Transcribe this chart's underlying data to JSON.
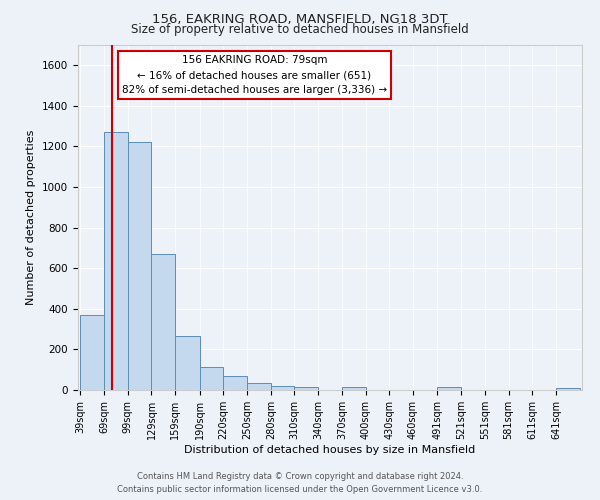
{
  "title_line1": "156, EAKRING ROAD, MANSFIELD, NG18 3DT",
  "title_line2": "Size of property relative to detached houses in Mansfield",
  "xlabel": "Distribution of detached houses by size in Mansfield",
  "ylabel": "Number of detached properties",
  "bar_labels": [
    "39sqm",
    "69sqm",
    "99sqm",
    "129sqm",
    "159sqm",
    "190sqm",
    "220sqm",
    "250sqm",
    "280sqm",
    "310sqm",
    "340sqm",
    "370sqm",
    "400sqm",
    "430sqm",
    "460sqm",
    "491sqm",
    "521sqm",
    "551sqm",
    "581sqm",
    "611sqm",
    "641sqm"
  ],
  "bar_values": [
    370,
    1270,
    1220,
    670,
    265,
    115,
    70,
    35,
    20,
    15,
    0,
    15,
    0,
    0,
    0,
    15,
    0,
    0,
    0,
    0,
    10
  ],
  "bar_color": "#c5d9ee",
  "bar_edge_color": "#5b8db8",
  "ylim": [
    0,
    1700
  ],
  "yticks": [
    0,
    200,
    400,
    600,
    800,
    1000,
    1200,
    1400,
    1600
  ],
  "bin_edges": [
    39,
    69,
    99,
    129,
    159,
    190,
    220,
    250,
    280,
    310,
    340,
    370,
    400,
    430,
    460,
    491,
    521,
    551,
    581,
    611,
    641,
    671
  ],
  "red_line_x": 79,
  "annotation_text_line1": "156 EAKRING ROAD: 79sqm",
  "annotation_text_line2": "← 16% of detached houses are smaller (651)",
  "annotation_text_line3": "82% of semi-detached houses are larger (3,336) →",
  "annotation_box_color": "#ffffff",
  "annotation_box_edge": "#cc0000",
  "red_line_color": "#cc0000",
  "background_color": "#edf2f9",
  "grid_color": "#ffffff",
  "footer_line1": "Contains HM Land Registry data © Crown copyright and database right 2024.",
  "footer_line2": "Contains public sector information licensed under the Open Government Licence v3.0."
}
